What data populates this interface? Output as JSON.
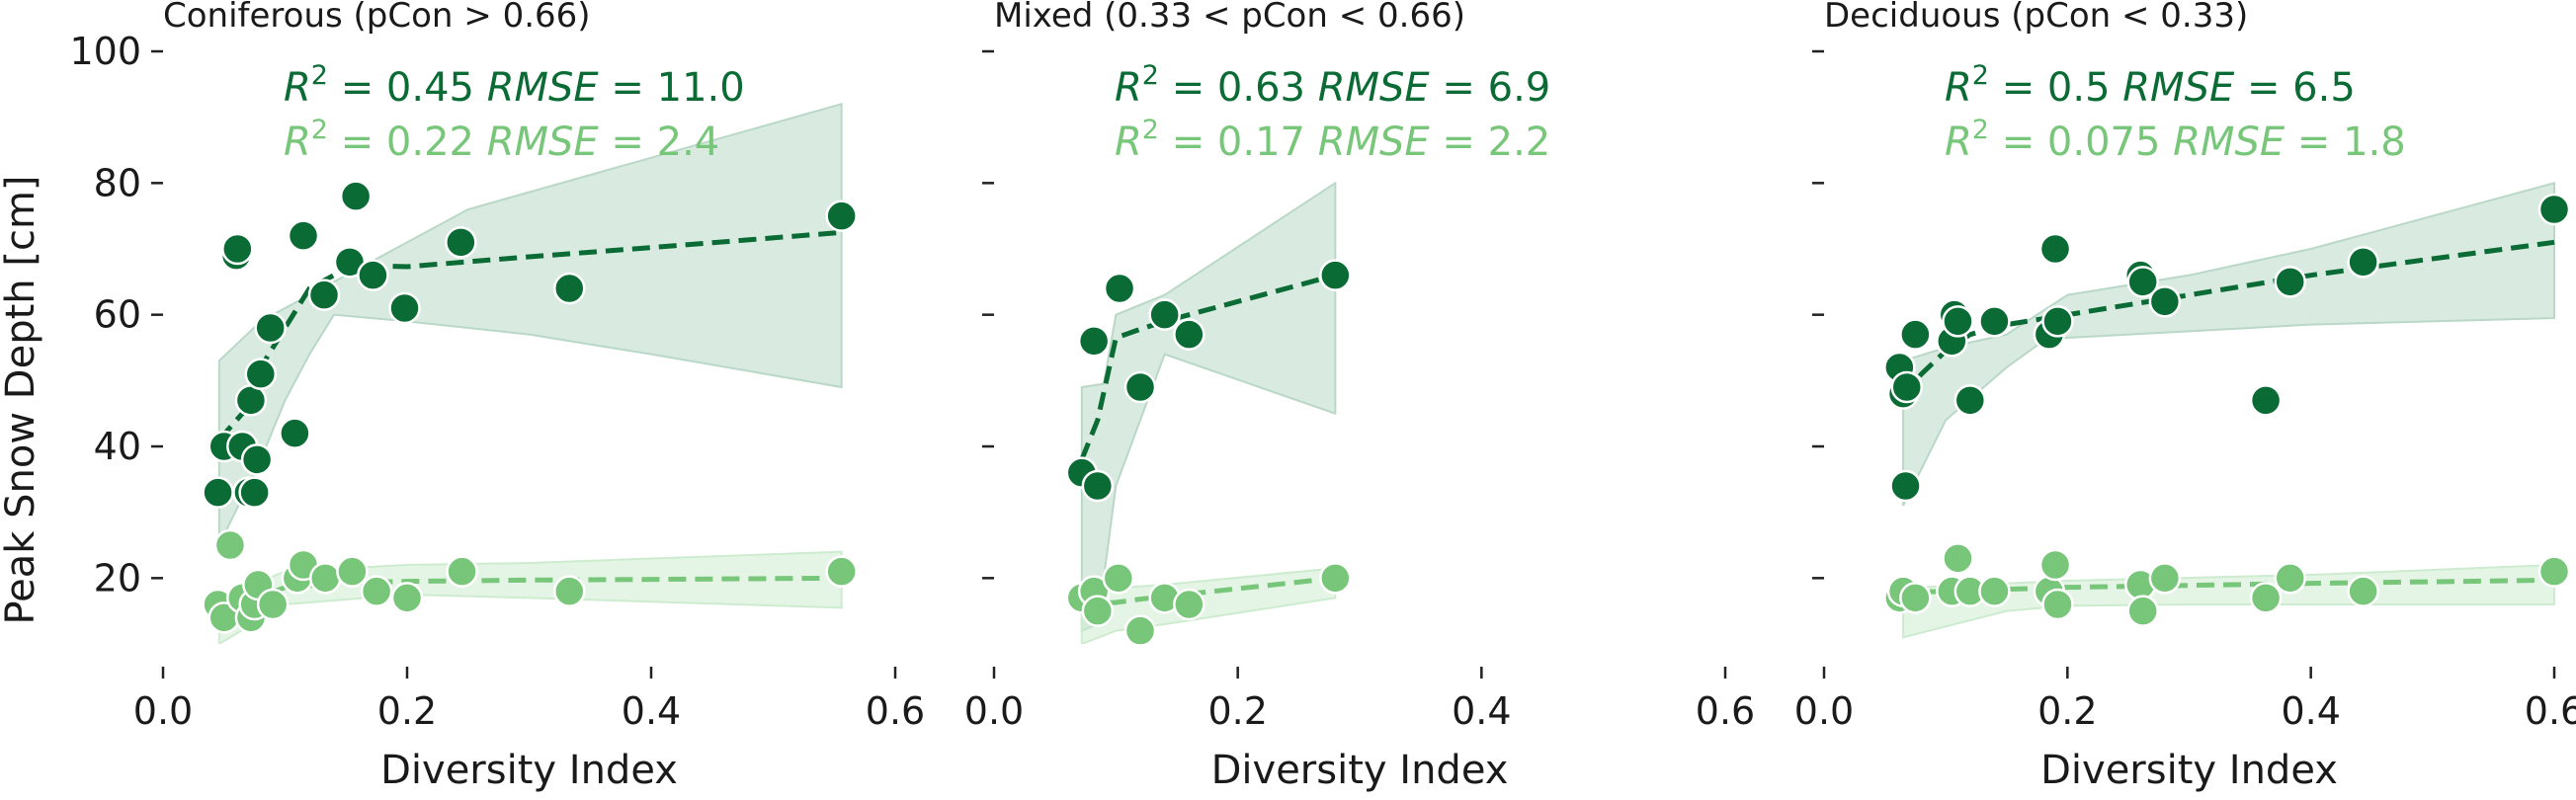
{
  "colors": {
    "dark": "#0a6b35",
    "light": "#78c679",
    "dark_band": "#b9d8c7",
    "light_band": "#cdeccf"
  },
  "ylabel": "Peak Snow Depth [cm]",
  "chart_data": [
    {
      "type": "scatter",
      "title": "Coniferous (pCon > 0.66)",
      "xlabel": "Diversity Index",
      "ylabel": "Peak Snow Depth [cm]",
      "xlim": [
        0.0,
        0.6
      ],
      "ylim": [
        10,
        100
      ],
      "xticks": [
        "0.0",
        "0.2",
        "0.4",
        "0.6"
      ],
      "yticks": [
        "20",
        "40",
        "60",
        "80",
        "100"
      ],
      "grid": false,
      "series": [
        {
          "stats": {
            "r2_label": "R",
            "r2_sup": "2",
            "r2_value": " = 0.45 ",
            "rmse_label": "RMSE",
            "rmse_value": " = 11.0"
          },
          "points": [
            [
              0.045,
              33
            ],
            [
              0.05,
              40
            ],
            [
              0.06,
              69
            ],
            [
              0.061,
              70
            ],
            [
              0.065,
              40
            ],
            [
              0.07,
              33
            ],
            [
              0.072,
              47
            ],
            [
              0.075,
              33
            ],
            [
              0.077,
              38
            ],
            [
              0.08,
              51
            ],
            [
              0.088,
              58
            ],
            [
              0.108,
              42
            ],
            [
              0.115,
              72
            ],
            [
              0.132,
              63
            ],
            [
              0.153,
              68
            ],
            [
              0.158,
              78
            ],
            [
              0.172,
              66
            ],
            [
              0.198,
              61
            ],
            [
              0.244,
              71
            ],
            [
              0.333,
              64
            ],
            [
              0.556,
              75
            ]
          ],
          "fit": [
            [
              0.046,
              41
            ],
            [
              0.065,
              45
            ],
            [
              0.08,
              52
            ],
            [
              0.1,
              58
            ],
            [
              0.12,
              64
            ],
            [
              0.14,
              66
            ],
            [
              0.155,
              67.5
            ],
            [
              0.2,
              67.3
            ],
            [
              0.3,
              68.8
            ],
            [
              0.4,
              70.2
            ],
            [
              0.556,
              72.5
            ]
          ],
          "band_upper": [
            [
              0.046,
              53
            ],
            [
              0.08,
              59
            ],
            [
              0.1,
              61
            ],
            [
              0.2,
              71
            ],
            [
              0.25,
              76
            ],
            [
              0.556,
              92
            ]
          ],
          "band_lower": [
            [
              0.046,
              25
            ],
            [
              0.08,
              38
            ],
            [
              0.1,
              47
            ],
            [
              0.12,
              54
            ],
            [
              0.14,
              60
            ],
            [
              0.2,
              59
            ],
            [
              0.3,
              57
            ],
            [
              0.4,
              54
            ],
            [
              0.556,
              49
            ]
          ]
        },
        {
          "stats": {
            "r2_label": "R",
            "r2_sup": "2",
            "r2_value": " = 0.22 ",
            "rmse_label": "RMSE",
            "rmse_value": " = 2.4"
          },
          "points": [
            [
              0.045,
              16
            ],
            [
              0.05,
              14
            ],
            [
              0.055,
              25
            ],
            [
              0.065,
              17
            ],
            [
              0.072,
              14
            ],
            [
              0.075,
              16
            ],
            [
              0.078,
              19
            ],
            [
              0.09,
              16
            ],
            [
              0.11,
              20
            ],
            [
              0.115,
              22
            ],
            [
              0.133,
              20
            ],
            [
              0.155,
              21
            ],
            [
              0.175,
              18
            ],
            [
              0.2,
              17
            ],
            [
              0.245,
              21
            ],
            [
              0.333,
              18
            ],
            [
              0.556,
              21
            ]
          ],
          "fit": [
            [
              0.046,
              15
            ],
            [
              0.075,
              16.8
            ],
            [
              0.1,
              18.6
            ],
            [
              0.15,
              19.3
            ],
            [
              0.2,
              19.5
            ],
            [
              0.3,
              19.7
            ],
            [
              0.4,
              19.8
            ],
            [
              0.556,
              20
            ]
          ],
          "band_upper": [
            [
              0.046,
              17
            ],
            [
              0.1,
              21
            ],
            [
              0.2,
              22
            ],
            [
              0.3,
              22.3
            ],
            [
              0.556,
              24
            ]
          ],
          "band_lower": [
            [
              0.046,
              10
            ],
            [
              0.1,
              16
            ],
            [
              0.2,
              17.5
            ],
            [
              0.3,
              17
            ],
            [
              0.556,
              15.5
            ]
          ]
        }
      ]
    },
    {
      "type": "scatter",
      "title": "Mixed (0.33 < pCon < 0.66)",
      "xlabel": "Diversity Index",
      "ylabel": "",
      "xlim": [
        0.0,
        0.6
      ],
      "ylim": [
        10,
        100
      ],
      "xticks": [
        "0.0",
        "0.2",
        "0.4",
        "0.6"
      ],
      "yticks": [],
      "grid": false,
      "series": [
        {
          "stats": {
            "r2_label": "R",
            "r2_sup": "2",
            "r2_value": " = 0.63 ",
            "rmse_label": "RMSE",
            "rmse_value": " = 6.9"
          },
          "points": [
            [
              0.072,
              36
            ],
            [
              0.082,
              56
            ],
            [
              0.085,
              34
            ],
            [
              0.103,
              64
            ],
            [
              0.12,
              49
            ],
            [
              0.14,
              60
            ],
            [
              0.16,
              57
            ],
            [
              0.28,
              66
            ]
          ],
          "fit": [
            [
              0.072,
              38
            ],
            [
              0.085,
              44
            ],
            [
              0.1,
              56.5
            ],
            [
              0.12,
              57.8
            ],
            [
              0.14,
              59
            ],
            [
              0.16,
              60
            ],
            [
              0.28,
              66
            ]
          ],
          "band_upper": [
            [
              0.072,
              49
            ],
            [
              0.09,
              49.5
            ],
            [
              0.1,
              60
            ],
            [
              0.14,
              63
            ],
            [
              0.28,
              80
            ]
          ],
          "band_lower": [
            [
              0.072,
              12
            ],
            [
              0.085,
              13
            ],
            [
              0.1,
              34
            ],
            [
              0.14,
              54
            ],
            [
              0.28,
              45
            ]
          ]
        },
        {
          "stats": {
            "r2_label": "R",
            "r2_sup": "2",
            "r2_value": " = 0.17 ",
            "rmse_label": "RMSE",
            "rmse_value": " = 2.2"
          },
          "points": [
            [
              0.072,
              17
            ],
            [
              0.082,
              18
            ],
            [
              0.085,
              15
            ],
            [
              0.102,
              20
            ],
            [
              0.12,
              12
            ],
            [
              0.14,
              17
            ],
            [
              0.16,
              16
            ],
            [
              0.28,
              20
            ]
          ],
          "fit": [
            [
              0.072,
              16
            ],
            [
              0.1,
              16.3
            ],
            [
              0.12,
              16.8
            ],
            [
              0.14,
              17.2
            ],
            [
              0.16,
              17.6
            ],
            [
              0.28,
              20
            ]
          ],
          "band_upper": [
            [
              0.072,
              18
            ],
            [
              0.1,
              18.5
            ],
            [
              0.14,
              19
            ],
            [
              0.28,
              21.5
            ]
          ],
          "band_lower": [
            [
              0.072,
              10
            ],
            [
              0.1,
              12
            ],
            [
              0.14,
              13
            ],
            [
              0.28,
              17
            ]
          ]
        }
      ]
    },
    {
      "type": "scatter",
      "title": "Deciduous (pCon < 0.33)",
      "xlabel": "Diversity Index",
      "ylabel": "",
      "xlim": [
        0.0,
        0.6
      ],
      "ylim": [
        10,
        100
      ],
      "xticks": [
        "0.0",
        "0.2",
        "0.4",
        "0.6"
      ],
      "yticks": [],
      "grid": false,
      "series": [
        {
          "stats": {
            "r2_label": "R",
            "r2_sup": "2",
            "r2_value": " = 0.5 ",
            "rmse_label": "RMSE",
            "rmse_value": " = 6.5"
          },
          "points": [
            [
              0.062,
              52
            ],
            [
              0.065,
              48
            ],
            [
              0.067,
              34
            ],
            [
              0.068,
              49
            ],
            [
              0.075,
              57
            ],
            [
              0.105,
              56
            ],
            [
              0.107,
              60
            ],
            [
              0.11,
              59
            ],
            [
              0.12,
              47
            ],
            [
              0.14,
              59
            ],
            [
              0.185,
              57
            ],
            [
              0.19,
              70
            ],
            [
              0.192,
              59
            ],
            [
              0.26,
              66
            ],
            [
              0.262,
              65
            ],
            [
              0.28,
              62
            ],
            [
              0.363,
              47
            ],
            [
              0.383,
              65
            ],
            [
              0.443,
              68
            ],
            [
              0.6,
              76
            ]
          ],
          "fit": [
            [
              0.065,
              47.5
            ],
            [
              0.08,
              51
            ],
            [
              0.1,
              54.5
            ],
            [
              0.12,
              57
            ],
            [
              0.15,
              58.5
            ],
            [
              0.2,
              60
            ],
            [
              0.3,
              63
            ],
            [
              0.4,
              66
            ],
            [
              0.5,
              68.5
            ],
            [
              0.6,
              71
            ]
          ],
          "band_upper": [
            [
              0.065,
              53
            ],
            [
              0.1,
              55
            ],
            [
              0.15,
              57
            ],
            [
              0.2,
              63
            ],
            [
              0.3,
              66
            ],
            [
              0.4,
              70
            ],
            [
              0.6,
              80
            ]
          ],
          "band_lower": [
            [
              0.065,
              31
            ],
            [
              0.1,
              44
            ],
            [
              0.15,
              52
            ],
            [
              0.18,
              56
            ],
            [
              0.2,
              56.5
            ],
            [
              0.3,
              57.5
            ],
            [
              0.4,
              58.5
            ],
            [
              0.6,
              59.5
            ]
          ]
        },
        {
          "stats": {
            "r2_label": "R",
            "r2_sup": "2",
            "r2_value": " = 0.075 ",
            "rmse_label": "RMSE",
            "rmse_value": " = 1.8"
          },
          "points": [
            [
              0.062,
              17
            ],
            [
              0.065,
              18
            ],
            [
              0.075,
              17
            ],
            [
              0.105,
              18
            ],
            [
              0.11,
              23
            ],
            [
              0.12,
              18
            ],
            [
              0.14,
              18
            ],
            [
              0.185,
              18
            ],
            [
              0.19,
              22
            ],
            [
              0.192,
              16
            ],
            [
              0.26,
              19
            ],
            [
              0.262,
              15
            ],
            [
              0.28,
              20
            ],
            [
              0.363,
              17
            ],
            [
              0.383,
              20
            ],
            [
              0.443,
              18
            ],
            [
              0.6,
              21
            ]
          ],
          "fit": [
            [
              0.065,
              17.8
            ],
            [
              0.15,
              18.3
            ],
            [
              0.2,
              18.6
            ],
            [
              0.3,
              18.9
            ],
            [
              0.4,
              19.2
            ],
            [
              0.6,
              19.7
            ]
          ],
          "band_upper": [
            [
              0.065,
              18.5
            ],
            [
              0.2,
              19.6
            ],
            [
              0.4,
              20.5
            ],
            [
              0.6,
              22
            ]
          ],
          "band_lower": [
            [
              0.065,
              11
            ],
            [
              0.15,
              15
            ],
            [
              0.2,
              15.8
            ],
            [
              0.3,
              16
            ],
            [
              0.4,
              16
            ],
            [
              0.6,
              16
            ]
          ]
        }
      ]
    }
  ]
}
